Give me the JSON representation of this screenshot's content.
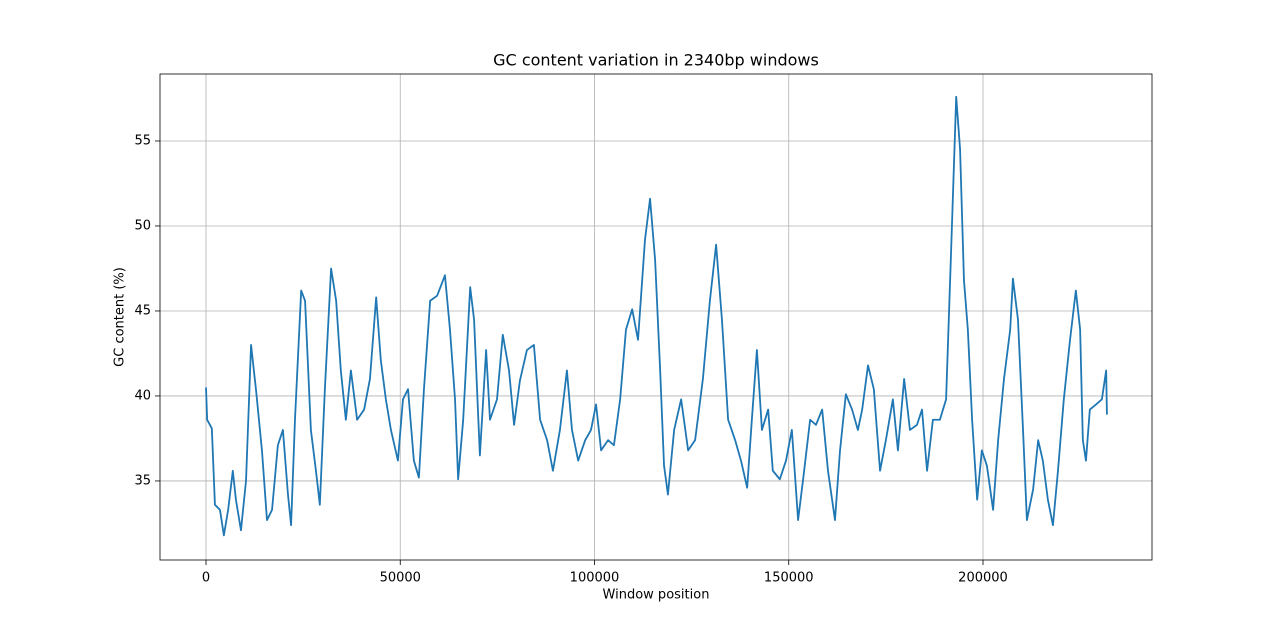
{
  "chart_data": {
    "type": "line",
    "title": "GC content variation in 2340bp windows",
    "xlabel": "Window position",
    "ylabel": "GC content (%)",
    "color": "#1f77b4",
    "grid": true,
    "xlim": [
      -11840,
      243500
    ],
    "ylim": [
      30.35,
      58.94
    ],
    "xticks": [
      0,
      50000,
      100000,
      150000,
      200000
    ],
    "yticks": [
      35,
      40,
      45,
      50,
      55
    ],
    "x": [
      0,
      300,
      1500,
      2300,
      3600,
      4600,
      5700,
      6900,
      7700,
      9000,
      10300,
      11600,
      12900,
      14400,
      15700,
      17000,
      18500,
      19800,
      21100,
      21900,
      22900,
      24500,
      25500,
      27000,
      28300,
      29300,
      30600,
      32200,
      33500,
      34700,
      36000,
      37300,
      38900,
      40700,
      42200,
      43800,
      45000,
      46300,
      47600,
      49400,
      50700,
      52000,
      53500,
      54800,
      56100,
      57700,
      59500,
      61500,
      62800,
      64100,
      64900,
      66200,
      68000,
      69000,
      70500,
      72100,
      73100,
      74900,
      76400,
      78000,
      79300,
      80800,
      82600,
      84400,
      86000,
      87800,
      89300,
      91100,
      92900,
      94200,
      95800,
      97600,
      99100,
      100400,
      101700,
      103500,
      105000,
      106600,
      108100,
      109700,
      111200,
      113000,
      114300,
      115600,
      116900,
      117900,
      118900,
      120500,
      122300,
      124100,
      125900,
      127900,
      129700,
      131300,
      132800,
      134400,
      136200,
      137700,
      139300,
      140500,
      141800,
      143100,
      144700,
      145900,
      147700,
      149300,
      150800,
      152400,
      153700,
      155500,
      157000,
      158600,
      160100,
      161900,
      163200,
      164700,
      166300,
      167800,
      168900,
      170400,
      171900,
      173500,
      175000,
      176800,
      178100,
      179700,
      181200,
      183000,
      184300,
      185600,
      187100,
      188900,
      190500,
      191800,
      193100,
      194100,
      195100,
      196100,
      197200,
      198500,
      199700,
      201000,
      202600,
      203900,
      205400,
      207000,
      207700,
      209000,
      210300,
      211300,
      212900,
      214200,
      215400,
      216700,
      218000,
      219300,
      220800,
      222400,
      223900,
      225000,
      225700,
      226500,
      227500,
      229100,
      230600,
      231700,
      231900
    ],
    "values": [
      40.5,
      38.6,
      38.1,
      33.6,
      33.3,
      31.8,
      33.3,
      35.6,
      33.9,
      32.1,
      35,
      43,
      40.3,
      36.8,
      32.7,
      33.3,
      37.1,
      38,
      34.2,
      32.4,
      38.6,
      46.2,
      45.6,
      38,
      35.6,
      33.6,
      40.4,
      47.5,
      45.6,
      41.5,
      38.6,
      41.5,
      38.6,
      39.2,
      41,
      45.8,
      42.1,
      39.8,
      38,
      36.2,
      39.8,
      40.4,
      36.2,
      35.2,
      40.4,
      45.6,
      45.9,
      47.1,
      43.9,
      39.8,
      35.1,
      38.6,
      46.4,
      44.5,
      36.5,
      42.7,
      38.6,
      39.8,
      43.6,
      41.5,
      38.3,
      40.9,
      42.7,
      43,
      38.6,
      37.4,
      35.6,
      38,
      41.5,
      38,
      36.2,
      37.4,
      38,
      39.5,
      36.8,
      37.4,
      37.1,
      39.8,
      43.9,
      45.1,
      43.3,
      49.2,
      51.6,
      48,
      41.5,
      35.9,
      34.2,
      38,
      39.8,
      36.8,
      37.4,
      41,
      45.6,
      48.9,
      44.5,
      38.6,
      37.4,
      36.2,
      34.6,
      38.6,
      42.7,
      38,
      39.2,
      35.6,
      35.1,
      36.2,
      38,
      32.7,
      35.1,
      38.6,
      38.3,
      39.2,
      35.6,
      32.7,
      36.8,
      40.1,
      39.2,
      38,
      39.2,
      41.8,
      40.4,
      35.6,
      37.4,
      39.8,
      36.8,
      41,
      38,
      38.3,
      39.2,
      35.6,
      38.6,
      38.6,
      39.8,
      48.6,
      57.6,
      54.5,
      46.8,
      43.9,
      38.6,
      33.9,
      36.8,
      35.9,
      33.3,
      37.4,
      41,
      43.9,
      46.9,
      44.5,
      38,
      32.7,
      34.5,
      37.4,
      36.2,
      33.9,
      32.4,
      35.6,
      39.8,
      43.3,
      46.2,
      43.9,
      37.4,
      36.2,
      39.2,
      39.5,
      39.8,
      41.5,
      38.9
    ]
  }
}
